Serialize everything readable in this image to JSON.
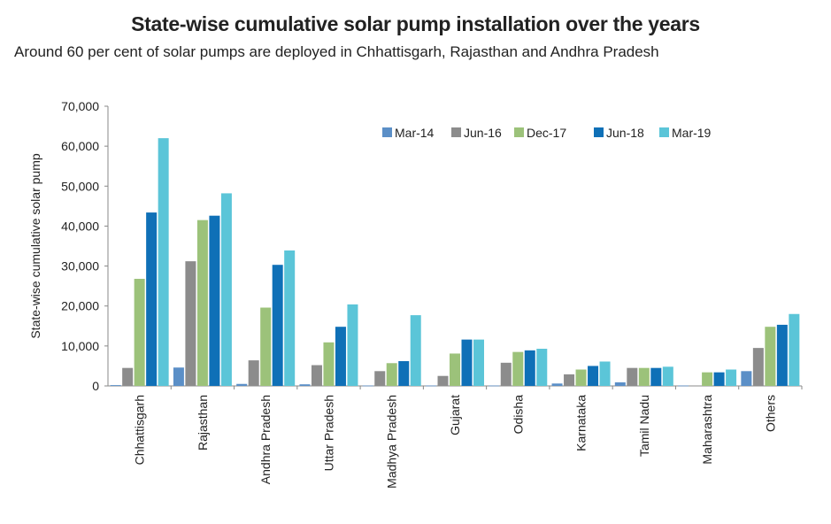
{
  "chart_data": {
    "type": "bar",
    "title": "State-wise cumulative solar pump installation over the years",
    "subtitle": "Around 60 per cent of solar pumps are deployed in Chhattisgarh, Rajasthan and Andhra Pradesh",
    "ylabel": "State-wise cumulative solar pump",
    "xlabel": "",
    "ylim": [
      0,
      70000
    ],
    "yticks": [
      "0",
      "10,000",
      "20,000",
      "30,000",
      "40,000",
      "50,000",
      "60,000",
      "70,000"
    ],
    "legend_position": "top-right",
    "categories": [
      "Chhattisgarh",
      "Rajasthan",
      "Andhra Pradesh",
      "Uttar Pradesh",
      "Madhya Pradesh",
      "Gujarat",
      "Odisha",
      "Karnataka",
      "Tamil Nadu",
      "Maharashtra",
      "Others"
    ],
    "series": [
      {
        "name": "Mar-14",
        "color": "#5b8fc7",
        "values": [
          200,
          4600,
          500,
          400,
          100,
          100,
          100,
          600,
          900,
          100,
          3700
        ]
      },
      {
        "name": "Jun-16",
        "color": "#8c8c8c",
        "values": [
          4500,
          31200,
          6400,
          5200,
          3700,
          2500,
          5800,
          2900,
          4500,
          100,
          9500
        ]
      },
      {
        "name": "Dec-17",
        "color": "#9cc27a",
        "values": [
          26800,
          41500,
          19600,
          10900,
          5700,
          8100,
          8500,
          4100,
          4500,
          3400,
          14800
        ]
      },
      {
        "name": "Jun-18",
        "color": "#0f70b7",
        "values": [
          43400,
          42600,
          30300,
          14800,
          6200,
          11600,
          8900,
          5000,
          4500,
          3400,
          15300
        ]
      },
      {
        "name": "Mar-19",
        "color": "#5bc5d8",
        "values": [
          62000,
          48200,
          33900,
          20400,
          17700,
          11600,
          9300,
          6100,
          4800,
          4100,
          18000
        ]
      }
    ]
  }
}
